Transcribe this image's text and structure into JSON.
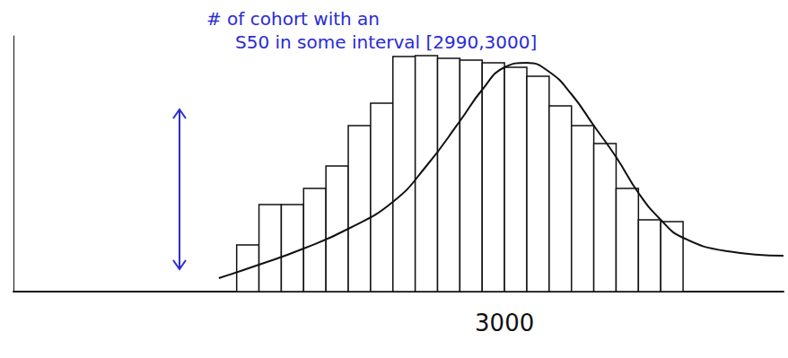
{
  "chart_data": {
    "type": "histogram",
    "bins": [
      2880,
      2890,
      2900,
      2910,
      2920,
      2930,
      2940,
      2950,
      2960,
      2970,
      2980,
      2990,
      3000,
      3010,
      3020,
      3030,
      3040,
      3050,
      3060,
      3070,
      3080
    ],
    "counts": [
      52,
      97,
      97,
      115,
      140,
      185,
      210,
      262,
      263,
      260,
      258,
      255,
      250,
      240,
      207,
      185,
      165,
      115,
      80,
      78
    ],
    "curve": {
      "x": [
        2872,
        2890,
        2910,
        2930,
        2950,
        2965,
        2980,
        2990,
        3000,
        3010,
        3020,
        3030,
        3040,
        3050,
        3060,
        3070,
        3080,
        3100,
        3125
      ],
      "values": [
        15,
        30,
        48,
        70,
        100,
        140,
        190,
        225,
        250,
        255,
        245,
        220,
        185,
        150,
        110,
        80,
        60,
        45,
        40
      ]
    },
    "xlim": [
      2780,
      3125
    ],
    "xticks": [
      3000
    ],
    "ylim": [
      0,
      285
    ],
    "tick_labels": "x",
    "grid": false,
    "annotations": [
      "# of cohort with an",
      "S50 in some interval [2990,3000]"
    ]
  }
}
